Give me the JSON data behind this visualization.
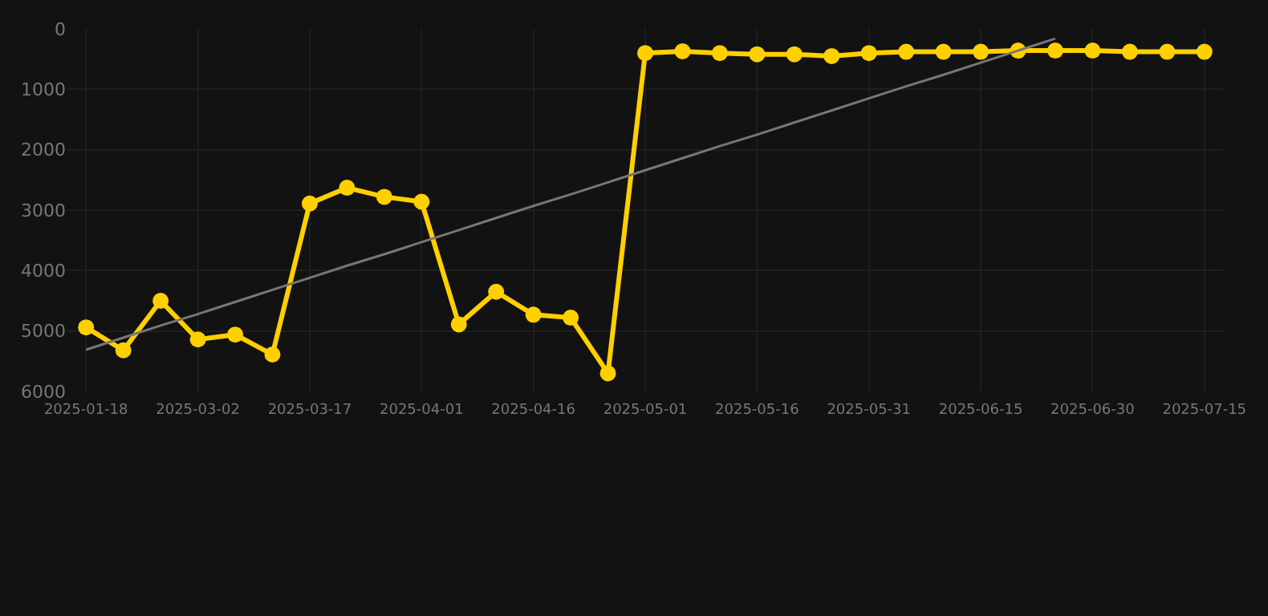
{
  "chart_data": {
    "type": "line",
    "categories": [
      "2025-01-18",
      null,
      null,
      "2025-03-02",
      null,
      null,
      "2025-03-17",
      null,
      null,
      "2025-04-01",
      null,
      null,
      "2025-04-16",
      null,
      null,
      "2025-05-01",
      null,
      null,
      "2025-05-16",
      null,
      null,
      "2025-05-31",
      null,
      null,
      "2025-06-15",
      null,
      null,
      "2025-06-30",
      null,
      null,
      "2025-07-15"
    ],
    "series": [
      {
        "color": "#ffd000",
        "marker": "circle",
        "values": [
          4940,
          5320,
          4500,
          5140,
          5060,
          5390,
          2890,
          2630,
          2780,
          2860,
          4890,
          4350,
          4730,
          4780,
          5700,
          400,
          370,
          400,
          420,
          420,
          450,
          400,
          380,
          380,
          380,
          360,
          360,
          360,
          380,
          380,
          380
        ]
      },
      {
        "color": "#777777",
        "marker": "none",
        "values": [
          5310,
          5110,
          4910,
          4720,
          4520,
          4320,
          4120,
          3920,
          3730,
          3530,
          3330,
          3130,
          2930,
          2740,
          2540,
          2340,
          2140,
          1940,
          1750,
          1550,
          1350,
          1150,
          950,
          760,
          560,
          360,
          160,
          null,
          null,
          null,
          null
        ]
      }
    ],
    "ylim": [
      6000,
      0
    ],
    "yticks": [
      0,
      1000,
      2000,
      3000,
      4000,
      5000,
      6000
    ],
    "grid": true
  }
}
